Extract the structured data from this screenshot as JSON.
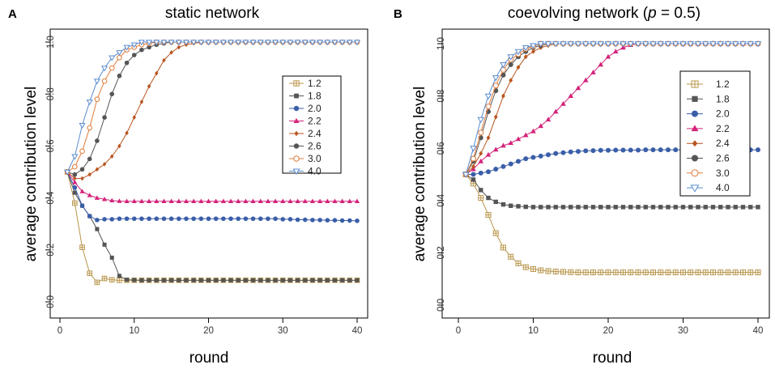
{
  "chart_data": [
    {
      "type": "line",
      "panel": "A",
      "title": "static network",
      "xlabel": "round",
      "ylabel": "average contribution level",
      "xlim": [
        0,
        40
      ],
      "ylim": [
        0,
        1
      ],
      "xticks": [
        "0",
        "10",
        "20",
        "30",
        "40"
      ],
      "yticks": [
        "0.0",
        "0.2",
        "0.4",
        "0.6",
        "0.8",
        "1.0"
      ],
      "x": [
        1,
        2,
        3,
        4,
        5,
        6,
        7,
        8,
        9,
        10,
        11,
        12,
        13,
        14,
        15,
        16,
        17,
        18,
        19,
        20,
        21,
        22,
        23,
        24,
        25,
        26,
        27,
        28,
        29,
        30,
        31,
        32,
        33,
        34,
        35,
        36,
        37,
        38,
        39,
        40
      ],
      "legend_position": "right",
      "series": [
        {
          "name": "1.2",
          "color": "#b8954a",
          "marker": "square-plus",
          "values": [
            0.5,
            0.38,
            0.21,
            0.11,
            0.075,
            0.09,
            0.085,
            0.083,
            0.083,
            0.083,
            0.083,
            0.083,
            0.083,
            0.083,
            0.083,
            0.083,
            0.083,
            0.083,
            0.083,
            0.083,
            0.083,
            0.083,
            0.083,
            0.083,
            0.083,
            0.083,
            0.083,
            0.083,
            0.083,
            0.083,
            0.083,
            0.083,
            0.083,
            0.083,
            0.083,
            0.083,
            0.083,
            0.083,
            0.083,
            0.083
          ]
        },
        {
          "name": "1.8",
          "color": "#555555",
          "marker": "square",
          "values": [
            0.5,
            0.42,
            0.37,
            0.33,
            0.28,
            0.22,
            0.17,
            0.1,
            0.085,
            0.084,
            0.083,
            0.083,
            0.083,
            0.083,
            0.083,
            0.083,
            0.083,
            0.083,
            0.083,
            0.083,
            0.083,
            0.083,
            0.083,
            0.083,
            0.083,
            0.083,
            0.083,
            0.083,
            0.083,
            0.083,
            0.083,
            0.083,
            0.083,
            0.083,
            0.083,
            0.083,
            0.083,
            0.083,
            0.083,
            0.083
          ]
        },
        {
          "name": "2.0",
          "color": "#3a5ea8",
          "marker": "circle",
          "values": [
            0.5,
            0.44,
            0.37,
            0.33,
            0.315,
            0.318,
            0.318,
            0.32,
            0.32,
            0.32,
            0.32,
            0.32,
            0.32,
            0.32,
            0.32,
            0.32,
            0.32,
            0.32,
            0.32,
            0.32,
            0.32,
            0.32,
            0.32,
            0.32,
            0.32,
            0.32,
            0.32,
            0.32,
            0.32,
            0.318,
            0.318,
            0.316,
            0.316,
            0.315,
            0.315,
            0.314,
            0.314,
            0.313,
            0.313,
            0.312
          ]
        },
        {
          "name": "2.2",
          "color": "#d4237a",
          "marker": "triangle",
          "values": [
            0.5,
            0.46,
            0.425,
            0.41,
            0.4,
            0.395,
            0.39,
            0.388,
            0.387,
            0.387,
            0.387,
            0.387,
            0.387,
            0.387,
            0.387,
            0.387,
            0.387,
            0.387,
            0.387,
            0.387,
            0.387,
            0.387,
            0.387,
            0.387,
            0.387,
            0.387,
            0.387,
            0.387,
            0.387,
            0.387,
            0.387,
            0.387,
            0.387,
            0.387,
            0.387,
            0.387,
            0.387,
            0.387,
            0.387,
            0.387
          ]
        },
        {
          "name": "2.4",
          "color": "#b8551f",
          "marker": "diamond",
          "values": [
            0.5,
            0.475,
            0.475,
            0.49,
            0.51,
            0.53,
            0.56,
            0.6,
            0.65,
            0.71,
            0.77,
            0.83,
            0.88,
            0.93,
            0.96,
            0.98,
            0.99,
            0.995,
            1.0,
            1.0,
            1.0,
            1.0,
            1.0,
            1.0,
            1.0,
            1.0,
            1.0,
            1.0,
            1.0,
            1.0,
            1.0,
            1.0,
            1.0,
            1.0,
            1.0,
            1.0,
            1.0,
            1.0,
            1.0,
            1.0
          ]
        },
        {
          "name": "2.6",
          "color": "#555555",
          "marker": "circle",
          "values": [
            0.5,
            0.49,
            0.51,
            0.55,
            0.62,
            0.71,
            0.8,
            0.87,
            0.92,
            0.95,
            0.97,
            0.98,
            0.99,
            0.995,
            1.0,
            1.0,
            1.0,
            1.0,
            1.0,
            1.0,
            1.0,
            1.0,
            1.0,
            1.0,
            1.0,
            1.0,
            1.0,
            1.0,
            1.0,
            1.0,
            1.0,
            1.0,
            1.0,
            1.0,
            1.0,
            1.0,
            1.0,
            1.0,
            1.0,
            1.0
          ]
        },
        {
          "name": "3.0",
          "color": "#e07b39",
          "marker": "circle-open",
          "values": [
            0.5,
            0.52,
            0.58,
            0.67,
            0.78,
            0.85,
            0.9,
            0.94,
            0.97,
            0.98,
            0.99,
            0.995,
            1.0,
            1.0,
            1.0,
            1.0,
            1.0,
            1.0,
            1.0,
            1.0,
            1.0,
            1.0,
            1.0,
            1.0,
            1.0,
            1.0,
            1.0,
            1.0,
            1.0,
            1.0,
            1.0,
            1.0,
            1.0,
            1.0,
            1.0,
            1.0,
            1.0,
            1.0,
            1.0,
            1.0
          ]
        },
        {
          "name": "4.0",
          "color": "#5b8ccf",
          "marker": "triangle-down-open",
          "values": [
            0.5,
            0.56,
            0.68,
            0.77,
            0.85,
            0.9,
            0.94,
            0.96,
            0.98,
            0.99,
            1.0,
            1.0,
            1.0,
            1.0,
            1.0,
            1.0,
            1.0,
            1.0,
            1.0,
            1.0,
            1.0,
            1.0,
            1.0,
            1.0,
            1.0,
            1.0,
            1.0,
            1.0,
            1.0,
            1.0,
            1.0,
            1.0,
            1.0,
            1.0,
            1.0,
            1.0,
            1.0,
            1.0,
            1.0,
            1.0
          ]
        }
      ]
    },
    {
      "type": "line",
      "panel": "B",
      "title_main": "coevolving network (",
      "title_p": "p",
      "title_rest": " = 0.5)",
      "xlabel": "round",
      "ylabel": "average contribution level",
      "xlim": [
        0,
        40
      ],
      "ylim": [
        0,
        1
      ],
      "xticks": [
        "0",
        "10",
        "20",
        "30",
        "40"
      ],
      "yticks": [
        "0.0",
        "0.2",
        "0.4",
        "0.6",
        "0.8",
        "1.0"
      ],
      "x": [
        1,
        2,
        3,
        4,
        5,
        6,
        7,
        8,
        9,
        10,
        11,
        12,
        13,
        14,
        15,
        16,
        17,
        18,
        19,
        20,
        21,
        22,
        23,
        24,
        25,
        26,
        27,
        28,
        29,
        30,
        31,
        32,
        33,
        34,
        35,
        36,
        37,
        38,
        39,
        40
      ],
      "legend_position": "right",
      "series": [
        {
          "name": "1.2",
          "color": "#b8954a",
          "marker": "square-plus",
          "values": [
            0.5,
            0.465,
            0.41,
            0.345,
            0.275,
            0.22,
            0.185,
            0.16,
            0.145,
            0.138,
            0.133,
            0.13,
            0.128,
            0.127,
            0.126,
            0.125,
            0.125,
            0.125,
            0.125,
            0.125,
            0.125,
            0.125,
            0.125,
            0.125,
            0.125,
            0.125,
            0.125,
            0.125,
            0.125,
            0.125,
            0.125,
            0.125,
            0.125,
            0.125,
            0.125,
            0.125,
            0.125,
            0.125,
            0.125,
            0.125
          ]
        },
        {
          "name": "1.8",
          "color": "#555555",
          "marker": "square",
          "values": [
            0.5,
            0.48,
            0.44,
            0.41,
            0.395,
            0.385,
            0.38,
            0.378,
            0.376,
            0.375,
            0.375,
            0.375,
            0.375,
            0.375,
            0.375,
            0.375,
            0.375,
            0.375,
            0.375,
            0.375,
            0.375,
            0.375,
            0.375,
            0.375,
            0.375,
            0.375,
            0.375,
            0.375,
            0.375,
            0.375,
            0.375,
            0.375,
            0.375,
            0.375,
            0.375,
            0.375,
            0.375,
            0.375,
            0.375,
            0.375
          ]
        },
        {
          "name": "2.0",
          "color": "#3a5ea8",
          "marker": "circle",
          "values": [
            0.5,
            0.5,
            0.505,
            0.51,
            0.52,
            0.53,
            0.54,
            0.55,
            0.56,
            0.565,
            0.57,
            0.575,
            0.58,
            0.583,
            0.586,
            0.588,
            0.59,
            0.591,
            0.592,
            0.592,
            0.593,
            0.593,
            0.593,
            0.593,
            0.594,
            0.594,
            0.594,
            0.594,
            0.594,
            0.594,
            0.594,
            0.594,
            0.594,
            0.594,
            0.594,
            0.594,
            0.594,
            0.594,
            0.594,
            0.594
          ]
        },
        {
          "name": "2.2",
          "color": "#d4237a",
          "marker": "triangle",
          "values": [
            0.5,
            0.52,
            0.55,
            0.575,
            0.595,
            0.61,
            0.62,
            0.635,
            0.65,
            0.665,
            0.685,
            0.71,
            0.74,
            0.77,
            0.8,
            0.83,
            0.86,
            0.89,
            0.92,
            0.95,
            0.97,
            0.985,
            0.995,
            1.0,
            1.0,
            1.0,
            1.0,
            1.0,
            1.0,
            1.0,
            1.0,
            1.0,
            1.0,
            1.0,
            1.0,
            1.0,
            1.0,
            1.0,
            1.0,
            1.0
          ]
        },
        {
          "name": "2.4",
          "color": "#b8551f",
          "marker": "diamond",
          "values": [
            0.5,
            0.53,
            0.58,
            0.64,
            0.72,
            0.8,
            0.86,
            0.91,
            0.95,
            0.97,
            0.985,
            0.993,
            1.0,
            1.0,
            1.0,
            1.0,
            1.0,
            1.0,
            1.0,
            1.0,
            1.0,
            1.0,
            1.0,
            1.0,
            1.0,
            1.0,
            1.0,
            1.0,
            1.0,
            1.0,
            1.0,
            1.0,
            1.0,
            1.0,
            1.0,
            1.0,
            1.0,
            1.0,
            1.0,
            1.0
          ]
        },
        {
          "name": "2.6",
          "color": "#555555",
          "marker": "circle",
          "values": [
            0.5,
            0.55,
            0.64,
            0.74,
            0.82,
            0.88,
            0.92,
            0.95,
            0.97,
            0.985,
            0.993,
            1.0,
            1.0,
            1.0,
            1.0,
            1.0,
            1.0,
            1.0,
            1.0,
            1.0,
            1.0,
            1.0,
            1.0,
            1.0,
            1.0,
            1.0,
            1.0,
            1.0,
            1.0,
            1.0,
            1.0,
            1.0,
            1.0,
            1.0,
            1.0,
            1.0,
            1.0,
            1.0,
            1.0,
            1.0
          ]
        },
        {
          "name": "3.0",
          "color": "#e07b39",
          "marker": "circle-open",
          "values": [
            0.5,
            0.56,
            0.66,
            0.76,
            0.84,
            0.9,
            0.94,
            0.96,
            0.98,
            0.99,
            1.0,
            1.0,
            1.0,
            1.0,
            1.0,
            1.0,
            1.0,
            1.0,
            1.0,
            1.0,
            1.0,
            1.0,
            1.0,
            1.0,
            1.0,
            1.0,
            1.0,
            1.0,
            1.0,
            1.0,
            1.0,
            1.0,
            1.0,
            1.0,
            1.0,
            1.0,
            1.0,
            1.0,
            1.0,
            1.0
          ]
        },
        {
          "name": "4.0",
          "color": "#5b8ccf",
          "marker": "triangle-down-open",
          "values": [
            0.5,
            0.6,
            0.71,
            0.8,
            0.87,
            0.92,
            0.95,
            0.97,
            0.985,
            0.993,
            1.0,
            1.0,
            1.0,
            1.0,
            1.0,
            1.0,
            1.0,
            1.0,
            1.0,
            1.0,
            1.0,
            1.0,
            1.0,
            1.0,
            1.0,
            1.0,
            1.0,
            1.0,
            1.0,
            1.0,
            1.0,
            1.0,
            1.0,
            1.0,
            1.0,
            1.0,
            1.0,
            1.0,
            1.0,
            1.0
          ]
        }
      ]
    }
  ]
}
